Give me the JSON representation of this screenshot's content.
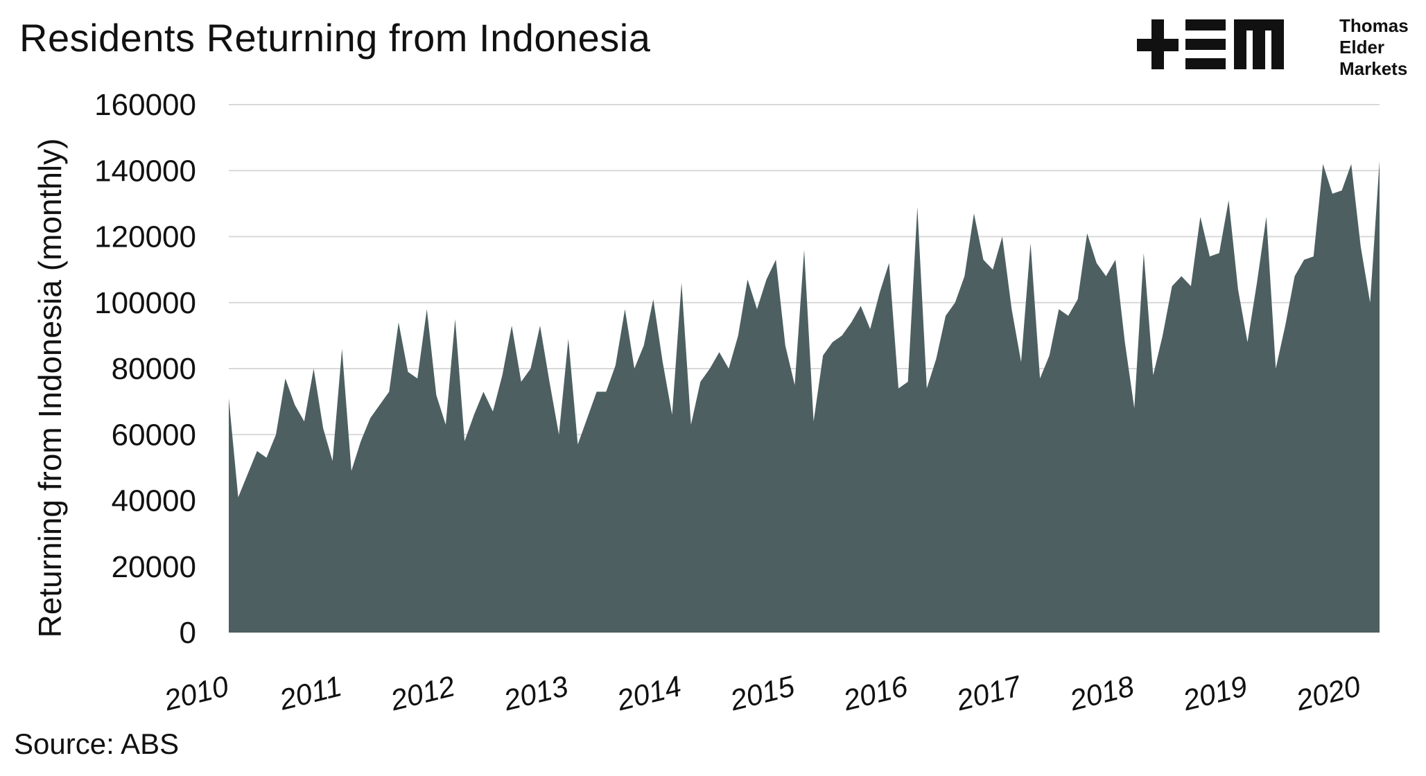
{
  "header": {
    "title": "Residents Returning from Indonesia"
  },
  "footer": {
    "source": "Source: ABS"
  },
  "logo": {
    "text_lines": [
      "Thomas",
      "Elder",
      "Markets"
    ],
    "mark": "+EM"
  },
  "colors": {
    "area_fill": "#4d5f61",
    "gridline": "#d9d9d9",
    "text": "#111111"
  },
  "chart_data": {
    "type": "area",
    "title": "Residents Returning from Indonesia",
    "xlabel": "",
    "ylabel": "Returning from Indonesia (monthly)",
    "ylim": [
      0,
      160000
    ],
    "y_ticks": [
      "0",
      "20000",
      "40000",
      "60000",
      "80000",
      "100000",
      "120000",
      "140000",
      "160000"
    ],
    "x_ticks": [
      "2010",
      "2011",
      "2012",
      "2013",
      "2014",
      "2015",
      "2016",
      "2017",
      "2018",
      "2019",
      "2020"
    ],
    "x_start": "2010-01",
    "frequency": "monthly",
    "grid": true,
    "legend": "none",
    "series": [
      {
        "values": [
          71000,
          41000,
          48000,
          55000,
          53000,
          60000,
          77000,
          69000,
          64000,
          80000,
          62000,
          52000,
          86000,
          49000,
          58000,
          65000,
          69000,
          73000,
          94000,
          79000,
          77000,
          98000,
          72000,
          63000,
          95000,
          58000,
          66000,
          73000,
          67000,
          78000,
          93000,
          76000,
          80000,
          93000,
          76000,
          60000,
          89000,
          57000,
          65000,
          73000,
          73000,
          81000,
          98000,
          80000,
          87000,
          101000,
          82000,
          66000,
          106000,
          63000,
          76000,
          80000,
          85000,
          80000,
          90000,
          107000,
          98000,
          107000,
          113000,
          87000,
          75000,
          116000,
          64000,
          84000,
          88000,
          90000,
          94000,
          99000,
          92000,
          103000,
          112000,
          74000,
          76000,
          129000,
          74000,
          83000,
          96000,
          100000,
          108000,
          127000,
          113000,
          110000,
          120000,
          98000,
          82000,
          118000,
          77000,
          84000,
          98000,
          96000,
          101000,
          121000,
          112000,
          108000,
          113000,
          88000,
          68000,
          115000,
          78000,
          90000,
          105000,
          108000,
          105000,
          126000,
          114000,
          115000,
          131000,
          104000,
          88000,
          106000,
          126000,
          80000,
          93000,
          108000,
          113000,
          114000,
          142000,
          133000,
          134000,
          142000,
          117000,
          100000,
          143000
        ]
      }
    ]
  }
}
